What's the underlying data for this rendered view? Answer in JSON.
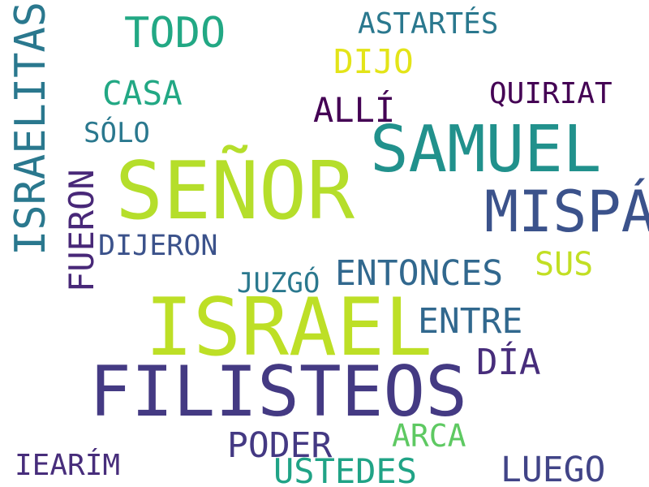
{
  "word_cloud": {
    "words": [
      {
        "id": "israelitas",
        "text": "ISRAELITAS",
        "color": "#2a788e"
      },
      {
        "id": "todo",
        "text": "TODO",
        "color": "#22a884"
      },
      {
        "id": "astartes",
        "text": "ASTARTÉS",
        "color": "#2a788e"
      },
      {
        "id": "dijo",
        "text": "DIJO",
        "color": "#e3e418"
      },
      {
        "id": "casa",
        "text": "CASA",
        "color": "#22a884"
      },
      {
        "id": "quiriat",
        "text": "QUIRIAT",
        "color": "#440154"
      },
      {
        "id": "alli",
        "text": "ALLÍ",
        "color": "#440154"
      },
      {
        "id": "solo",
        "text": "SÓLO",
        "color": "#2a788e"
      },
      {
        "id": "samuel",
        "text": "SAMUEL",
        "color": "#21918c"
      },
      {
        "id": "senor",
        "text": "SEÑOR",
        "color": "#b5de2b"
      },
      {
        "id": "fueron",
        "text": "FUERON",
        "color": "#482878"
      },
      {
        "id": "mispa",
        "text": "MISPÁ",
        "color": "#3b528b"
      },
      {
        "id": "dijeron",
        "text": "DIJERON",
        "color": "#3b528b"
      },
      {
        "id": "sus",
        "text": "SUS",
        "color": "#c2df23"
      },
      {
        "id": "juzgo",
        "text": "JUZGÓ",
        "color": "#2a788e"
      },
      {
        "id": "entonces",
        "text": "ENTONCES",
        "color": "#31688e"
      },
      {
        "id": "israel",
        "text": "ISRAEL",
        "color": "#bddf26"
      },
      {
        "id": "entre",
        "text": "ENTRE",
        "color": "#31688e"
      },
      {
        "id": "dia",
        "text": "DÍA",
        "color": "#472d7b"
      },
      {
        "id": "filisteos",
        "text": "FILISTEOS",
        "color": "#443a83"
      },
      {
        "id": "poder",
        "text": "PODER",
        "color": "#443983"
      },
      {
        "id": "arca",
        "text": "ARCA",
        "color": "#5ec962"
      },
      {
        "id": "iearim",
        "text": "IEARÍM",
        "color": "#472d7b"
      },
      {
        "id": "ustedes",
        "text": "USTEDES",
        "color": "#20a386"
      },
      {
        "id": "luego",
        "text": "LUEGO",
        "color": "#414487"
      }
    ]
  }
}
